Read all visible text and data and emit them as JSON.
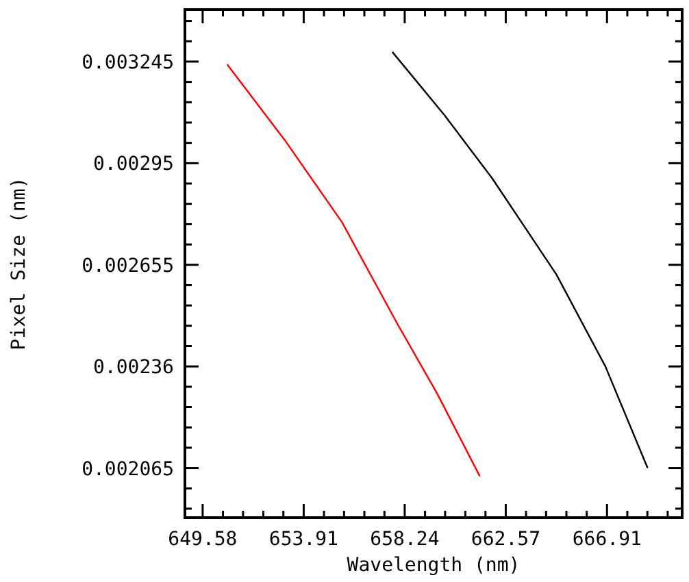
{
  "chart_data": {
    "type": "line",
    "xlabel": "Wavelength (nm)",
    "ylabel": "Pixel Size (nm)",
    "xlim": [
      648.82,
      670.13
    ],
    "ylim": [
      0.001921,
      0.003396
    ],
    "xticks": [
      649.58,
      {
        "value": 650.45,
        "label": null
      },
      {
        "value": 651.31,
        "label": null
      },
      {
        "value": 652.18,
        "label": null
      },
      {
        "value": 653.04,
        "label": null
      },
      653.91,
      {
        "value": 654.78,
        "label": null
      },
      {
        "value": 655.64,
        "label": null
      },
      {
        "value": 656.51,
        "label": null
      },
      {
        "value": 657.37,
        "label": null
      },
      658.24,
      {
        "value": 659.11,
        "label": null
      },
      {
        "value": 659.97,
        "label": null
      },
      {
        "value": 660.84,
        "label": null
      },
      {
        "value": 661.7,
        "label": null
      },
      662.57,
      {
        "value": 663.44,
        "label": null
      },
      {
        "value": 664.3,
        "label": null
      },
      {
        "value": 665.17,
        "label": null
      },
      {
        "value": 666.04,
        "label": null
      },
      666.91,
      {
        "value": 667.78,
        "label": null
      },
      {
        "value": 668.64,
        "label": null
      },
      {
        "value": 669.51,
        "label": null
      }
    ],
    "yticks": [
      {
        "value": 0.001947,
        "label": null
      },
      {
        "value": 0.002006,
        "label": null
      },
      0.002065,
      {
        "value": 0.002124,
        "label": null
      },
      {
        "value": 0.002183,
        "label": null
      },
      {
        "value": 0.002242,
        "label": null
      },
      {
        "value": 0.002301,
        "label": null
      },
      0.00236,
      {
        "value": 0.002419,
        "label": null
      },
      {
        "value": 0.002478,
        "label": null
      },
      {
        "value": 0.002537,
        "label": null
      },
      {
        "value": 0.002596,
        "label": null
      },
      0.002655,
      {
        "value": 0.002714,
        "label": null
      },
      {
        "value": 0.002773,
        "label": null
      },
      {
        "value": 0.002832,
        "label": null
      },
      {
        "value": 0.002891,
        "label": null
      },
      0.00295,
      {
        "value": 0.003009,
        "label": null
      },
      {
        "value": 0.003068,
        "label": null
      },
      {
        "value": 0.003127,
        "label": null
      },
      {
        "value": 0.003186,
        "label": null
      },
      0.003245,
      {
        "value": 0.003304,
        "label": null
      },
      {
        "value": 0.003363,
        "label": null
      }
    ],
    "marker": "none",
    "line_style": "solid",
    "series": [
      {
        "color": "#ff0000",
        "x": [
          650.63,
          653.09,
          655.55,
          657.89,
          659.64,
          661.46
        ],
        "values": [
          0.003237,
          0.003018,
          0.002779,
          0.002488,
          0.00228,
          0.002041
        ]
      },
      {
        "color": "#000000",
        "x": [
          657.71,
          659.94,
          661.99,
          664.74,
          666.84,
          668.65
        ],
        "values": [
          0.003273,
          0.00309,
          0.002906,
          0.002627,
          0.00236,
          0.002065
        ]
      }
    ]
  }
}
